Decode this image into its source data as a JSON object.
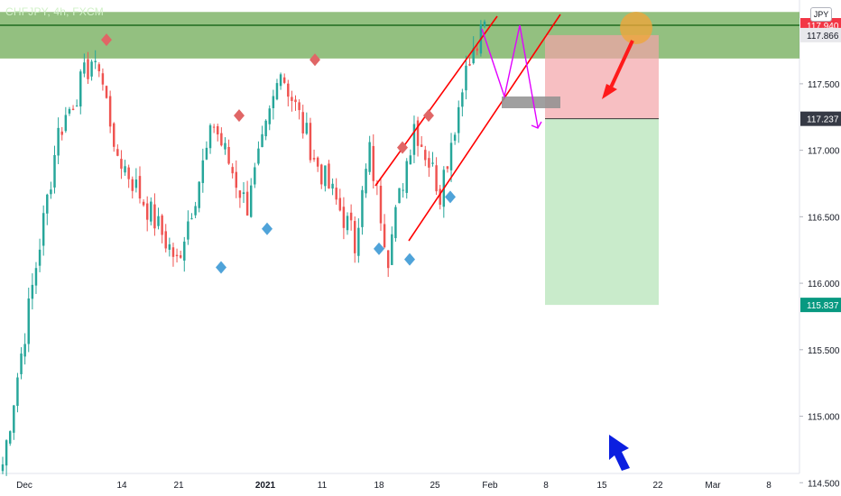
{
  "header": {
    "symbol_label": "CHFJPY, 4h, FXCM",
    "currency_label": "JPY"
  },
  "colors": {
    "up": "#26a69a",
    "down": "#ef5350",
    "resistance_zone": "#6aa84f",
    "stop_zone": "#f4a4a8",
    "target_zone": "#a8deab",
    "channel": "#ff0000",
    "forecast": "#e100ff",
    "pivot_high": "#e06666",
    "pivot_low": "#4fa3d9",
    "arrow_red": "#ff1a1a",
    "arrow_blue": "#0b1fe0",
    "circle": "#f0a53a"
  },
  "chart_data": {
    "type": "candlestick",
    "title": "",
    "timeframe": "4h",
    "ylim": [
      114.4,
      118.13
    ],
    "y_ticks": [
      "117.500",
      "117.000",
      "116.500",
      "116.000",
      "115.500",
      "115.000",
      "114.500"
    ],
    "time_ticks": [
      "Dec",
      "14",
      "21",
      "2021",
      "11",
      "18",
      "25",
      "Feb",
      "8",
      "15",
      "22",
      "Mar",
      "8"
    ],
    "price_badges": [
      {
        "label": "117.940",
        "value": 117.94,
        "color": "#f23645",
        "text_color": "#ffffff"
      },
      {
        "label": "117.866",
        "value": 117.866,
        "color": "#e8e8ec",
        "text_color": "#131722"
      },
      {
        "label": "117.237",
        "value": 117.237,
        "color": "#363a45",
        "text_color": "#ffffff"
      },
      {
        "label": "115.837",
        "value": 115.837,
        "color": "#089981",
        "text_color": "#ffffff"
      }
    ],
    "resistance_zone": [
      117.69,
      118.04
    ],
    "last_price_line": 117.94,
    "short_position": {
      "entry": 117.237,
      "stop": 117.866,
      "target": 115.837
    },
    "pivot_highs": [
      117.79,
      117.22,
      117.64,
      116.98,
      117.22
    ],
    "pivot_lows": [
      116.16,
      116.45,
      116.3,
      116.22,
      116.69
    ],
    "key_points": [
      {
        "date_index": 0,
        "close": 114.64
      },
      {
        "date_index": 15,
        "close": 117.13
      },
      {
        "date_index": 25,
        "close": 117.74
      },
      {
        "date_index": 31,
        "close": 116.97
      },
      {
        "date_index": 47,
        "close": 116.17
      },
      {
        "date_index": 57,
        "close": 117.19
      },
      {
        "date_index": 66,
        "close": 116.56
      },
      {
        "date_index": 75,
        "close": 117.61
      },
      {
        "date_index": 85,
        "close": 116.89
      },
      {
        "date_index": 95,
        "close": 116.33
      },
      {
        "date_index": 99,
        "close": 116.98
      },
      {
        "date_index": 104,
        "close": 116.22
      },
      {
        "date_index": 111,
        "close": 117.2
      },
      {
        "date_index": 118,
        "close": 116.7
      },
      {
        "date_index": 125,
        "close": 117.58
      },
      {
        "date_index": 130,
        "close": 117.92
      }
    ]
  }
}
